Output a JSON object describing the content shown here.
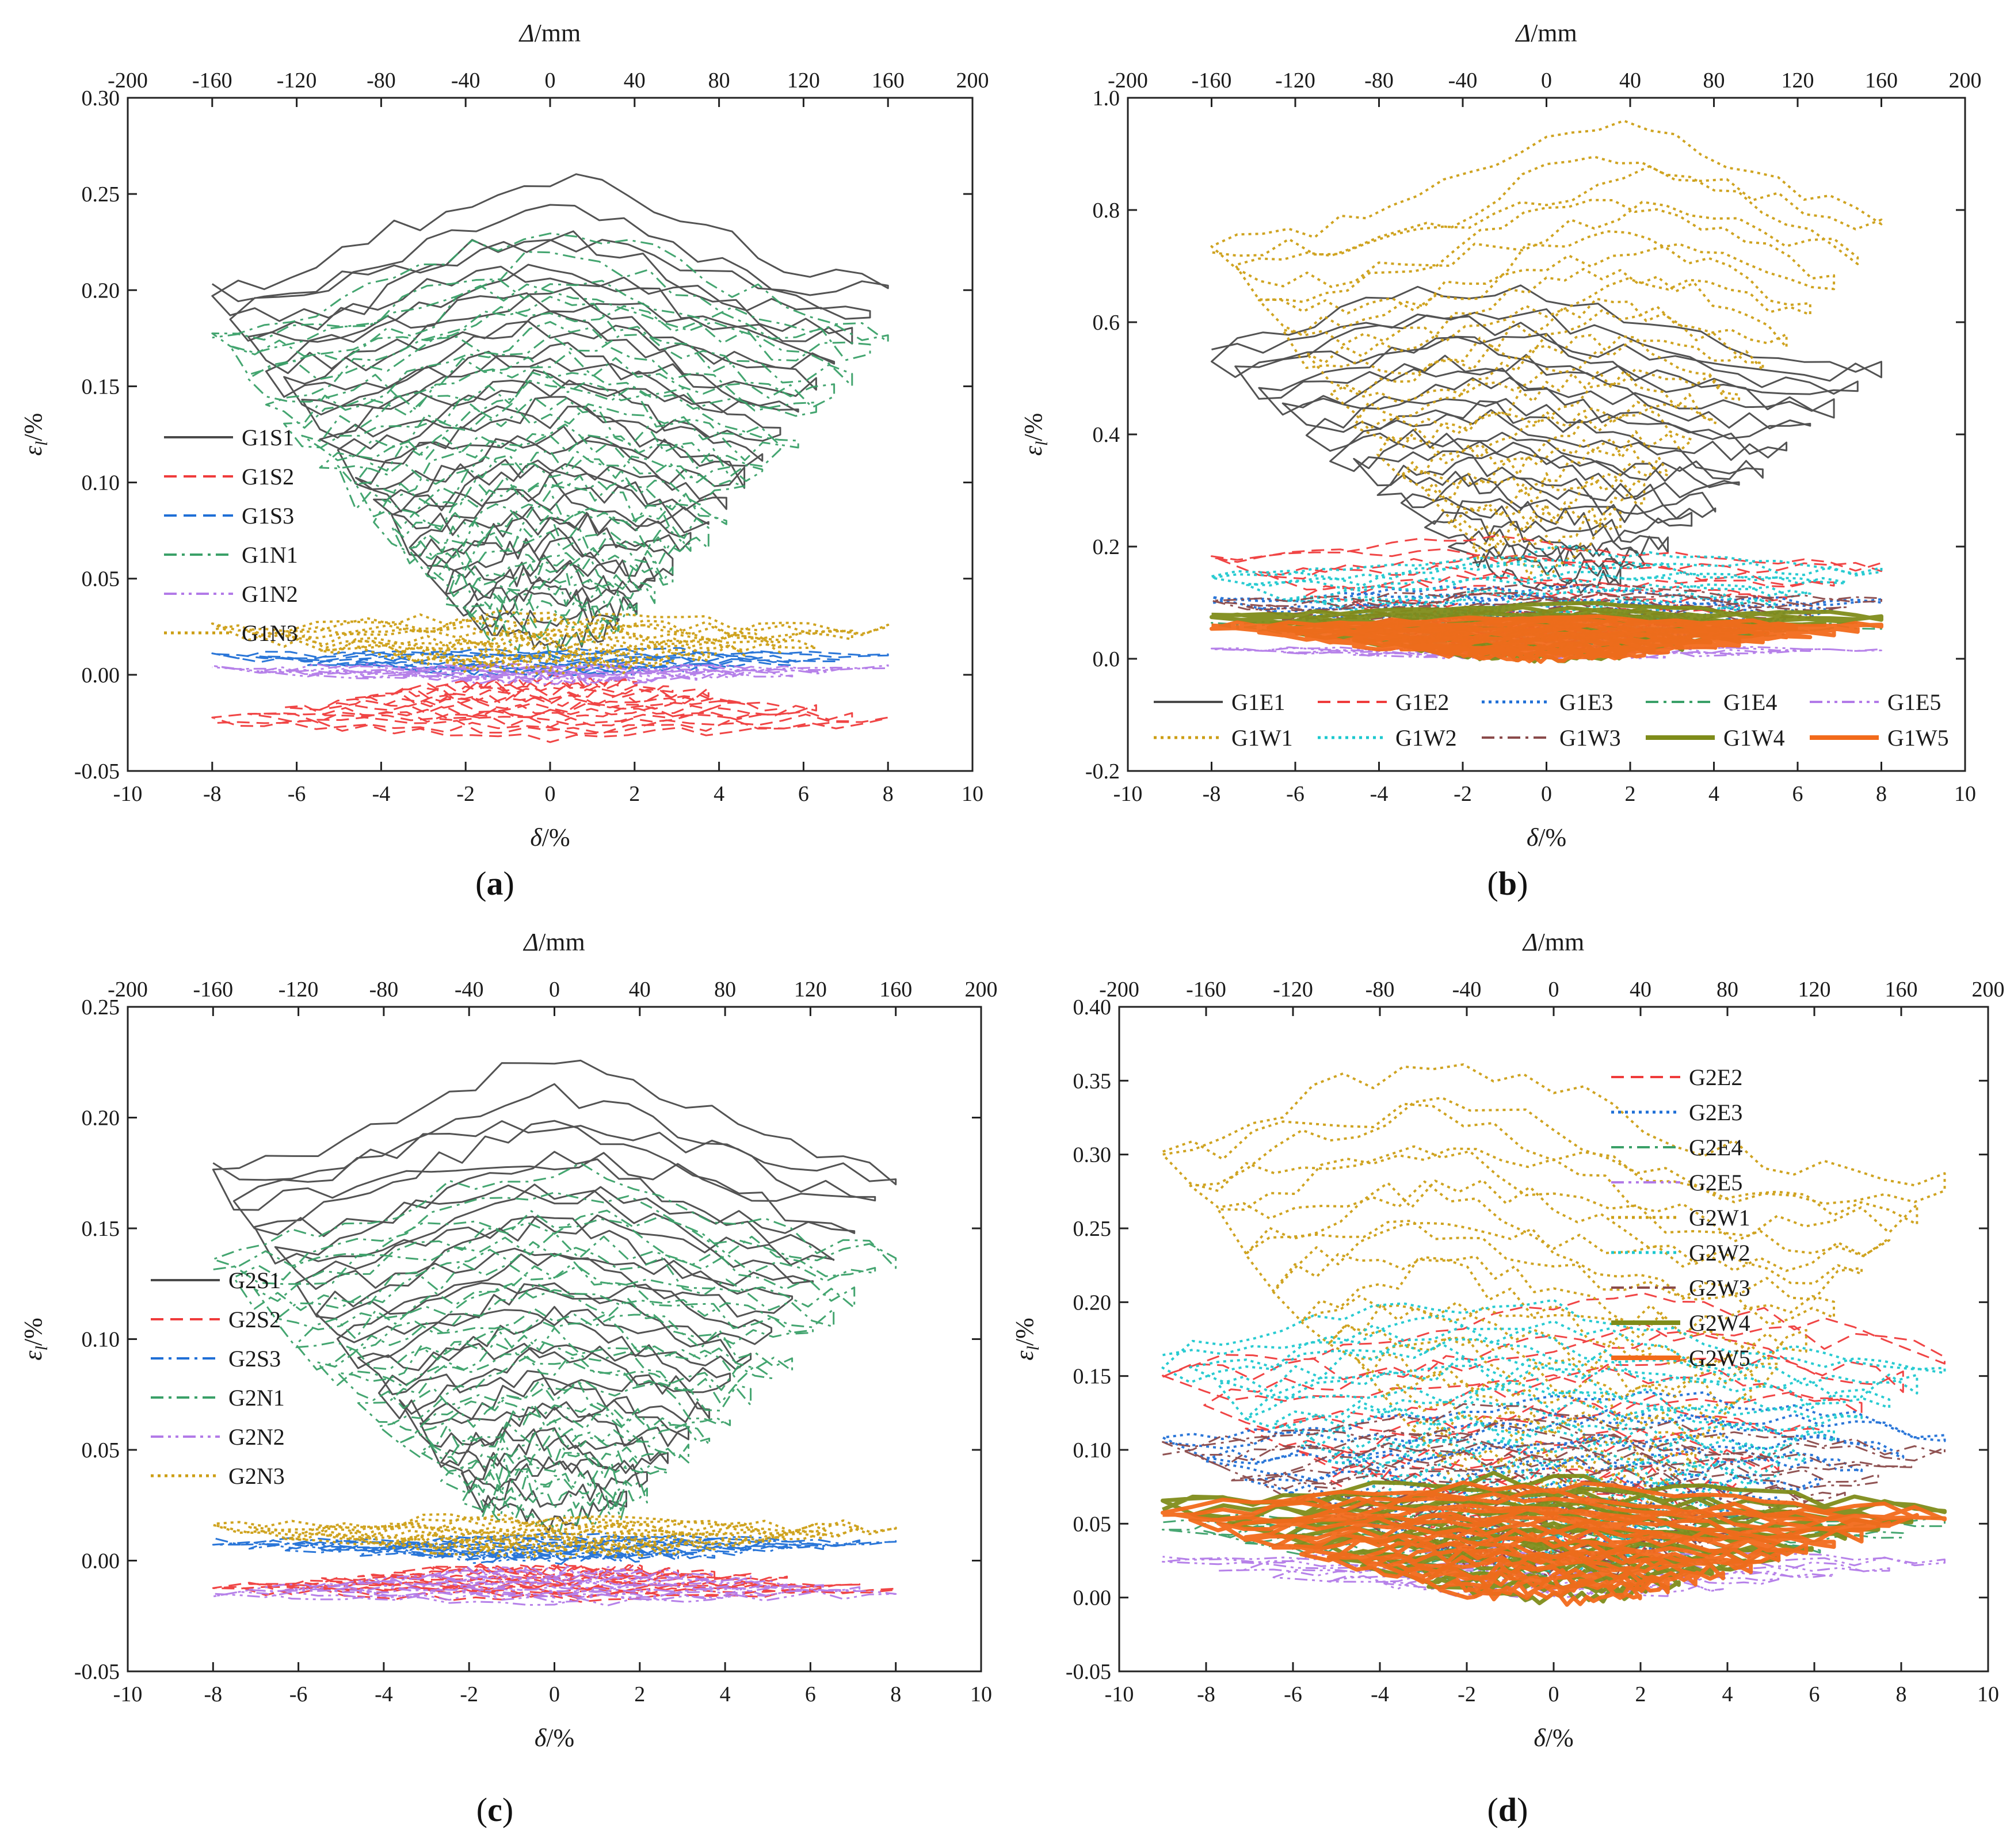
{
  "chart_data": [
    {
      "id": "a",
      "type": "line",
      "panel_label": "a",
      "x_label_main": "δ",
      "x_label_unit": "/%",
      "x_top_label_main": "Δ",
      "x_top_label_unit": "/mm",
      "y_label_main": "ε",
      "y_label_sub": "l",
      "y_label_unit": "/%",
      "xlim": [
        -10,
        10
      ],
      "ylim": [
        -0.05,
        0.3
      ],
      "xticks": [
        "-10",
        "-8",
        "-6",
        "-4",
        "-2",
        "0",
        "2",
        "4",
        "6",
        "8",
        "10"
      ],
      "yticks": [
        "-0.05",
        "0.00",
        "0.05",
        "0.10",
        "0.15",
        "0.20",
        "0.25",
        "0.30"
      ],
      "top_ticks": [
        "-200",
        "-160",
        "-120",
        "-80",
        "-40",
        "0",
        "40",
        "80",
        "120",
        "160",
        "200"
      ],
      "legend_position": "left",
      "series": [
        {
          "name": "G1S1",
          "color": "#4a4a4a",
          "style": "solid",
          "hyst": {
            "peak": 0.24,
            "base": 0.02,
            "xmax": 8,
            "loops": 16,
            "seed": 11,
            "skew": 0.0,
            "noise": 0.006
          }
        },
        {
          "name": "G1S2",
          "color": "#ef3b3b",
          "style": "dashed",
          "hyst": {
            "peak": -0.03,
            "base": -0.002,
            "xmax": 8,
            "loops": 8,
            "seed": 12,
            "skew": 0.0,
            "noise": 0.003
          }
        },
        {
          "name": "G1S3",
          "color": "#1f6fd6",
          "style": "dashed",
          "hyst": {
            "peak": 0.012,
            "base": 0.0,
            "xmax": 8,
            "loops": 6,
            "seed": 13,
            "skew": 0.2,
            "noise": 0.002
          }
        },
        {
          "name": "G1N1",
          "color": "#3aa068",
          "style": "dashdot",
          "hyst": {
            "peak": 0.215,
            "base": 0.02,
            "xmax": 8,
            "loops": 16,
            "seed": 14,
            "skew": 0.0,
            "noise": 0.007
          }
        },
        {
          "name": "G1N2",
          "color": "#b27ae8",
          "style": "dashdotdot",
          "hyst": {
            "peak": 0.004,
            "base": -0.004,
            "xmax": 8,
            "loops": 6,
            "seed": 15,
            "skew": 0.0,
            "noise": 0.002
          }
        },
        {
          "name": "G1N3",
          "color": "#cc9e14",
          "style": "dotted",
          "hyst": {
            "peak": 0.028,
            "base": 0.003,
            "xmax": 8,
            "loops": 8,
            "seed": 16,
            "skew": 0.0,
            "noise": 0.004
          }
        }
      ]
    },
    {
      "id": "b",
      "type": "line",
      "panel_label": "b",
      "x_label_main": "δ",
      "x_label_unit": "/%",
      "x_top_label_main": "Δ",
      "x_top_label_unit": "/mm",
      "y_label_main": "ε",
      "y_label_sub": "l",
      "y_label_unit": "/%",
      "xlim": [
        -10,
        10
      ],
      "ylim": [
        -0.2,
        1.0
      ],
      "xticks": [
        "-10",
        "-8",
        "-6",
        "-4",
        "-2",
        "0",
        "2",
        "4",
        "6",
        "8",
        "10"
      ],
      "yticks": [
        "-0.2",
        "0.0",
        "0.2",
        "0.4",
        "0.6",
        "0.8",
        "1.0"
      ],
      "top_ticks": [
        "-200",
        "-160",
        "-120",
        "-80",
        "-40",
        "0",
        "40",
        "80",
        "120",
        "160",
        "200"
      ],
      "legend_position": "bottom",
      "series": [
        {
          "name": "G1E1",
          "color": "#4a4a4a",
          "style": "solid",
          "hyst": {
            "peak": 0.63,
            "base": 0.15,
            "xmax": 8,
            "loops": 12,
            "seed": 21,
            "skew": -0.5,
            "noise": 0.02
          }
        },
        {
          "name": "G1E2",
          "color": "#ef3b3b",
          "style": "dashed",
          "hyst": {
            "peak": 0.2,
            "base": 0.02,
            "xmax": 8,
            "loops": 6,
            "seed": 22,
            "skew": -0.6,
            "noise": 0.01
          }
        },
        {
          "name": "G1E3",
          "color": "#1f6fd6",
          "style": "dotted",
          "hyst": {
            "peak": 0.12,
            "base": 0.02,
            "xmax": 8,
            "loops": 6,
            "seed": 23,
            "skew": -0.4,
            "noise": 0.008
          }
        },
        {
          "name": "G1E4",
          "color": "#3aa068",
          "style": "dashdot",
          "hyst": {
            "peak": 0.07,
            "base": 0.02,
            "xmax": 8,
            "loops": 6,
            "seed": 24,
            "skew": 0.0,
            "noise": 0.006
          }
        },
        {
          "name": "G1E5",
          "color": "#b27ae8",
          "style": "dashdotdot",
          "hyst": {
            "peak": 0.02,
            "base": 0.0,
            "xmax": 8,
            "loops": 4,
            "seed": 25,
            "skew": 0.0,
            "noise": 0.004
          }
        },
        {
          "name": "G1W1",
          "color": "#cc9e14",
          "style": "dotted",
          "hyst": {
            "peak": 0.9,
            "base": 0.2,
            "xmax": 8,
            "loops": 12,
            "seed": 26,
            "skew": 0.5,
            "noise": 0.02
          }
        },
        {
          "name": "G1W2",
          "color": "#1cc8cf",
          "style": "dotted",
          "hyst": {
            "peak": 0.18,
            "base": 0.02,
            "xmax": 8,
            "loops": 8,
            "seed": 27,
            "skew": 0.3,
            "noise": 0.01
          }
        },
        {
          "name": "G1W3",
          "color": "#8a4a4a",
          "style": "dashdot",
          "hyst": {
            "peak": 0.12,
            "base": 0.02,
            "xmax": 8,
            "loops": 8,
            "seed": 28,
            "skew": 0.2,
            "noise": 0.008
          }
        },
        {
          "name": "G1W4",
          "color": "#7f8c1a",
          "style": "thick",
          "hyst": {
            "peak": 0.09,
            "base": 0.0,
            "xmax": 8,
            "loops": 10,
            "seed": 29,
            "skew": 0.1,
            "noise": 0.006
          }
        },
        {
          "name": "G1W5",
          "color": "#f26a1b",
          "style": "thick",
          "hyst": {
            "peak": 0.07,
            "base": 0.0,
            "xmax": 8,
            "loops": 12,
            "seed": 30,
            "skew": 0.0,
            "noise": 0.006
          }
        }
      ]
    },
    {
      "id": "c",
      "type": "line",
      "panel_label": "c",
      "x_label_main": "δ",
      "x_label_unit": "/%",
      "x_top_label_main": "Δ",
      "x_top_label_unit": "/mm",
      "y_label_main": "ε",
      "y_label_sub": "l",
      "y_label_unit": "/%",
      "xlim": [
        -10,
        10
      ],
      "ylim": [
        -0.05,
        0.25
      ],
      "xticks": [
        "-10",
        "-8",
        "-6",
        "-4",
        "-2",
        "0",
        "2",
        "4",
        "6",
        "8",
        "10"
      ],
      "yticks": [
        "-0.05",
        "0.00",
        "0.05",
        "0.10",
        "0.15",
        "0.20",
        "0.25"
      ],
      "top_ticks": [
        "-200",
        "-160",
        "-120",
        "-80",
        "-40",
        "0",
        "40",
        "80",
        "120",
        "160",
        "200"
      ],
      "legend_position": "left",
      "series": [
        {
          "name": "G2S1",
          "color": "#4a4a4a",
          "style": "solid",
          "hyst": {
            "peak": 0.21,
            "base": 0.02,
            "xmax": 8,
            "loops": 14,
            "seed": 31,
            "skew": 0.0,
            "noise": 0.005
          }
        },
        {
          "name": "G2S2",
          "color": "#ef3b3b",
          "style": "dashed",
          "hyst": {
            "peak": -0.016,
            "base": -0.002,
            "xmax": 8,
            "loops": 8,
            "seed": 32,
            "skew": 0.0,
            "noise": 0.002
          }
        },
        {
          "name": "G2S3",
          "color": "#1f6fd6",
          "style": "dashdot",
          "hyst": {
            "peak": 0.01,
            "base": 0.0,
            "xmax": 8,
            "loops": 8,
            "seed": 33,
            "skew": 0.2,
            "noise": 0.002
          }
        },
        {
          "name": "G2N1",
          "color": "#3aa068",
          "style": "dashdot",
          "hyst": {
            "peak": 0.165,
            "base": 0.02,
            "xmax": 8,
            "loops": 14,
            "seed": 34,
            "skew": 0.0,
            "noise": 0.006
          }
        },
        {
          "name": "G2N2",
          "color": "#b27ae8",
          "style": "dashdotdot",
          "hyst": {
            "peak": -0.018,
            "base": -0.004,
            "xmax": 8,
            "loops": 8,
            "seed": 35,
            "skew": 0.0,
            "noise": 0.002
          }
        },
        {
          "name": "G2N3",
          "color": "#cc9e14",
          "style": "dotted",
          "hyst": {
            "peak": 0.018,
            "base": 0.003,
            "xmax": 8,
            "loops": 8,
            "seed": 36,
            "skew": 0.0,
            "noise": 0.003
          }
        }
      ]
    },
    {
      "id": "d",
      "type": "line",
      "panel_label": "d",
      "x_label_main": "δ",
      "x_label_unit": "/%",
      "x_top_label_main": "Δ",
      "x_top_label_unit": "/mm",
      "y_label_main": "ε",
      "y_label_sub": "l",
      "y_label_unit": "/%",
      "xlim": [
        -10,
        10
      ],
      "ylim": [
        -0.05,
        0.4
      ],
      "xticks": [
        "-10",
        "-8",
        "-6",
        "-4",
        "-2",
        "0",
        "2",
        "4",
        "6",
        "8",
        "10"
      ],
      "yticks": [
        "-0.05",
        "0.00",
        "0.05",
        "0.10",
        "0.15",
        "0.20",
        "0.25",
        "0.30",
        "0.35",
        "0.40"
      ],
      "top_ticks": [
        "-200",
        "-160",
        "-120",
        "-80",
        "-40",
        "0",
        "40",
        "80",
        "120",
        "160",
        "200"
      ],
      "legend_position": "top-right",
      "series": [
        {
          "name": "G2E2",
          "color": "#ef3b3b",
          "style": "dashed",
          "hyst": {
            "peak": 0.19,
            "base": 0.02,
            "xmax": 9,
            "loops": 8,
            "seed": 41,
            "skew": 0.6,
            "noise": 0.008
          }
        },
        {
          "name": "G2E3",
          "color": "#1f6fd6",
          "style": "dotted",
          "hyst": {
            "peak": 0.13,
            "base": 0.02,
            "xmax": 9,
            "loops": 8,
            "seed": 42,
            "skew": 0.5,
            "noise": 0.006
          }
        },
        {
          "name": "G2E4",
          "color": "#3aa068",
          "style": "dashdot",
          "hyst": {
            "peak": 0.06,
            "base": 0.01,
            "xmax": 9,
            "loops": 8,
            "seed": 43,
            "skew": 0.0,
            "noise": 0.005
          }
        },
        {
          "name": "G2E5",
          "color": "#b27ae8",
          "style": "dashdotdot",
          "hyst": {
            "peak": 0.03,
            "base": 0.0,
            "xmax": 9,
            "loops": 6,
            "seed": 44,
            "skew": -0.3,
            "noise": 0.003
          }
        },
        {
          "name": "G2W1",
          "color": "#cc9e14",
          "style": "dotted",
          "hyst": {
            "peak": 0.34,
            "base": 0.05,
            "xmax": 9,
            "loops": 12,
            "seed": 45,
            "skew": -0.7,
            "noise": 0.01
          }
        },
        {
          "name": "G2W2",
          "color": "#1cc8cf",
          "style": "dotted",
          "hyst": {
            "peak": 0.19,
            "base": 0.03,
            "xmax": 9,
            "loops": 12,
            "seed": 46,
            "skew": -0.5,
            "noise": 0.008
          }
        },
        {
          "name": "G2W3",
          "color": "#8a4a4a",
          "style": "dashdot",
          "hyst": {
            "peak": 0.12,
            "base": 0.02,
            "xmax": 9,
            "loops": 10,
            "seed": 47,
            "skew": -0.4,
            "noise": 0.006
          }
        },
        {
          "name": "G2W4",
          "color": "#7f8c1a",
          "style": "thick",
          "hyst": {
            "peak": 0.075,
            "base": 0.0,
            "xmax": 9,
            "loops": 10,
            "seed": 48,
            "skew": -0.3,
            "noise": 0.005
          }
        },
        {
          "name": "G2W5",
          "color": "#f26a1b",
          "style": "thick",
          "hyst": {
            "peak": 0.07,
            "base": 0.0,
            "xmax": 9,
            "loops": 12,
            "seed": 49,
            "skew": -0.3,
            "noise": 0.005
          }
        }
      ]
    }
  ]
}
